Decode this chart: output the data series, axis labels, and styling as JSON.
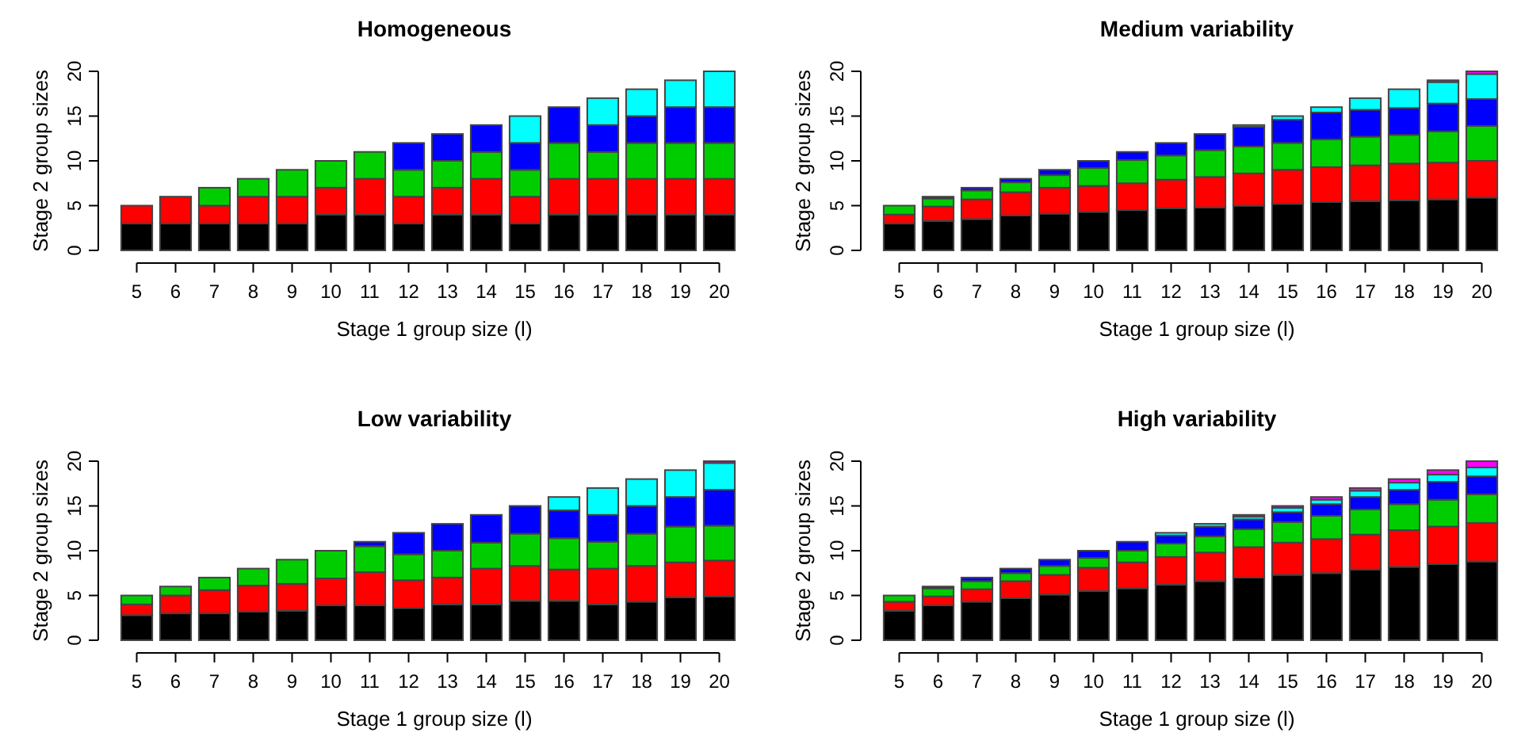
{
  "chart_data": [
    {
      "type": "bar",
      "stacked": true,
      "title": "Homogeneous",
      "xlabel": "Stage 1 group size (l)",
      "ylabel": "Stage 2 group sizes",
      "categories": [
        "5",
        "6",
        "7",
        "8",
        "9",
        "10",
        "11",
        "12",
        "13",
        "14",
        "15",
        "16",
        "17",
        "18",
        "19",
        "20"
      ],
      "ylim": [
        0,
        20
      ],
      "yticks": [
        0,
        5,
        10,
        15,
        20
      ],
      "series": [
        {
          "color": "#000000",
          "values": [
            3,
            3,
            3,
            3,
            3,
            4,
            4,
            3,
            4,
            4,
            3,
            4,
            4,
            4,
            4,
            4
          ]
        },
        {
          "color": "#ff0000",
          "values": [
            2,
            3,
            2,
            3,
            3,
            3,
            4,
            3,
            3,
            4,
            3,
            4,
            4,
            4,
            4,
            4
          ]
        },
        {
          "color": "#00cd00",
          "values": [
            null,
            null,
            2,
            2,
            3,
            3,
            3,
            3,
            3,
            3,
            3,
            4,
            3,
            4,
            4,
            4
          ]
        },
        {
          "color": "#0000ff",
          "values": [
            null,
            null,
            null,
            null,
            null,
            null,
            null,
            3,
            3,
            3,
            3,
            4,
            3,
            3,
            4,
            4
          ]
        },
        {
          "color": "#00ffff",
          "values": [
            null,
            null,
            null,
            null,
            null,
            null,
            null,
            null,
            null,
            null,
            3,
            null,
            3,
            3,
            3,
            4
          ]
        }
      ]
    },
    {
      "type": "bar",
      "stacked": true,
      "title": "Medium variability",
      "xlabel": "Stage 1 group size (l)",
      "ylabel": "Stage 2 group sizes",
      "categories": [
        "5",
        "6",
        "7",
        "8",
        "9",
        "10",
        "11",
        "12",
        "13",
        "14",
        "15",
        "16",
        "17",
        "18",
        "19",
        "20"
      ],
      "ylim": [
        0,
        20
      ],
      "yticks": [
        0,
        5,
        10,
        15,
        20
      ],
      "series": [
        {
          "color": "#000000",
          "values": [
            3,
            3.3,
            3.5,
            3.9,
            4.1,
            4.3,
            4.5,
            4.7,
            4.8,
            5,
            5.2,
            5.4,
            5.5,
            5.6,
            5.7,
            5.9
          ]
        },
        {
          "color": "#ff0000",
          "values": [
            1,
            1.6,
            2.2,
            2.6,
            2.9,
            2.9,
            3,
            3.2,
            3.4,
            3.6,
            3.8,
            3.9,
            4,
            4.1,
            4.1,
            4.1
          ]
        },
        {
          "color": "#00cd00",
          "values": [
            1,
            0.9,
            1,
            1.1,
            1.4,
            2,
            2.6,
            2.7,
            3,
            3,
            3,
            3.1,
            3.2,
            3.2,
            3.5,
            3.9
          ]
        },
        {
          "color": "#0000ff",
          "values": [
            null,
            0.2,
            0.3,
            0.4,
            0.6,
            0.8,
            0.9,
            1.4,
            1.8,
            2.2,
            2.6,
            3,
            3,
            3,
            3.1,
            3
          ]
        },
        {
          "color": "#00ffff",
          "values": [
            null,
            null,
            null,
            null,
            null,
            null,
            null,
            null,
            null,
            0.2,
            0.4,
            0.6,
            1.3,
            2.1,
            2.4,
            2.8
          ]
        },
        {
          "color": "#ff00ff",
          "values": [
            null,
            null,
            null,
            null,
            null,
            null,
            null,
            null,
            null,
            null,
            null,
            null,
            null,
            null,
            0.2,
            0.3
          ]
        }
      ]
    },
    {
      "type": "bar",
      "stacked": true,
      "title": "Low variability",
      "xlabel": "Stage 1 group size (l)",
      "ylabel": "Stage 2 group sizes",
      "categories": [
        "5",
        "6",
        "7",
        "8",
        "9",
        "10",
        "11",
        "12",
        "13",
        "14",
        "15",
        "16",
        "17",
        "18",
        "19",
        "20"
      ],
      "ylim": [
        0,
        20
      ],
      "yticks": [
        0,
        5,
        10,
        15,
        20
      ],
      "series": [
        {
          "color": "#000000",
          "values": [
            2.8,
            3,
            3,
            3.2,
            3.3,
            3.9,
            3.9,
            3.6,
            4,
            4,
            4.4,
            4.4,
            4,
            4.3,
            4.8,
            4.9
          ]
        },
        {
          "color": "#ff0000",
          "values": [
            1.2,
            2,
            2.6,
            2.9,
            3,
            3,
            3.7,
            3.1,
            3,
            4,
            3.9,
            3.5,
            4,
            4,
            3.9,
            4
          ]
        },
        {
          "color": "#00cd00",
          "values": [
            1,
            1,
            1.4,
            1.9,
            2.7,
            3.1,
            2.9,
            2.9,
            3,
            2.9,
            3.6,
            3.5,
            3,
            3.6,
            4,
            3.9
          ]
        },
        {
          "color": "#0000ff",
          "values": [
            null,
            null,
            null,
            null,
            null,
            null,
            0.5,
            2.4,
            3,
            3.1,
            3.1,
            3.1,
            3,
            3.1,
            3.3,
            4
          ]
        },
        {
          "color": "#00ffff",
          "values": [
            null,
            null,
            null,
            null,
            null,
            null,
            null,
            null,
            null,
            null,
            null,
            1.5,
            3,
            3,
            3,
            3
          ]
        },
        {
          "color": "#ff00ff",
          "values": [
            null,
            null,
            null,
            null,
            null,
            null,
            null,
            null,
            null,
            null,
            null,
            null,
            null,
            null,
            null,
            0.2
          ]
        }
      ]
    },
    {
      "type": "bar",
      "stacked": true,
      "title": "High variability",
      "xlabel": "Stage 1 group size (l)",
      "ylabel": "Stage 2 group sizes",
      "categories": [
        "5",
        "6",
        "7",
        "8",
        "9",
        "10",
        "11",
        "12",
        "13",
        "14",
        "15",
        "16",
        "17",
        "18",
        "19",
        "20"
      ],
      "ylim": [
        0,
        20
      ],
      "yticks": [
        0,
        5,
        10,
        15,
        20
      ],
      "series": [
        {
          "color": "#000000",
          "values": [
            3.3,
            3.9,
            4.3,
            4.7,
            5.1,
            5.5,
            5.8,
            6.2,
            6.6,
            7,
            7.3,
            7.5,
            7.9,
            8.2,
            8.5,
            8.8
          ]
        },
        {
          "color": "#ff0000",
          "values": [
            1,
            1,
            1.4,
            1.9,
            2.2,
            2.6,
            2.9,
            3.1,
            3.2,
            3.4,
            3.6,
            3.8,
            3.9,
            4.1,
            4.2,
            4.3
          ]
        },
        {
          "color": "#00cd00",
          "values": [
            0.7,
            0.9,
            0.9,
            0.9,
            1,
            1.1,
            1.3,
            1.5,
            1.8,
            2,
            2.3,
            2.6,
            2.8,
            2.9,
            3,
            3.2
          ]
        },
        {
          "color": "#0000ff",
          "values": [
            null,
            0.2,
            0.4,
            0.5,
            0.7,
            0.8,
            1,
            0.9,
            1.1,
            1.1,
            1.1,
            1.3,
            1.4,
            1.6,
            2,
            2
          ]
        },
        {
          "color": "#00ffff",
          "values": [
            null,
            null,
            null,
            null,
            null,
            null,
            null,
            0.3,
            0.3,
            0.3,
            0.5,
            0.5,
            0.7,
            0.8,
            0.8,
            1
          ]
        },
        {
          "color": "#ff00ff",
          "values": [
            null,
            null,
            null,
            null,
            null,
            null,
            null,
            null,
            null,
            0.2,
            0.2,
            0.3,
            0.3,
            0.4,
            0.5,
            0.7
          ]
        }
      ]
    }
  ]
}
